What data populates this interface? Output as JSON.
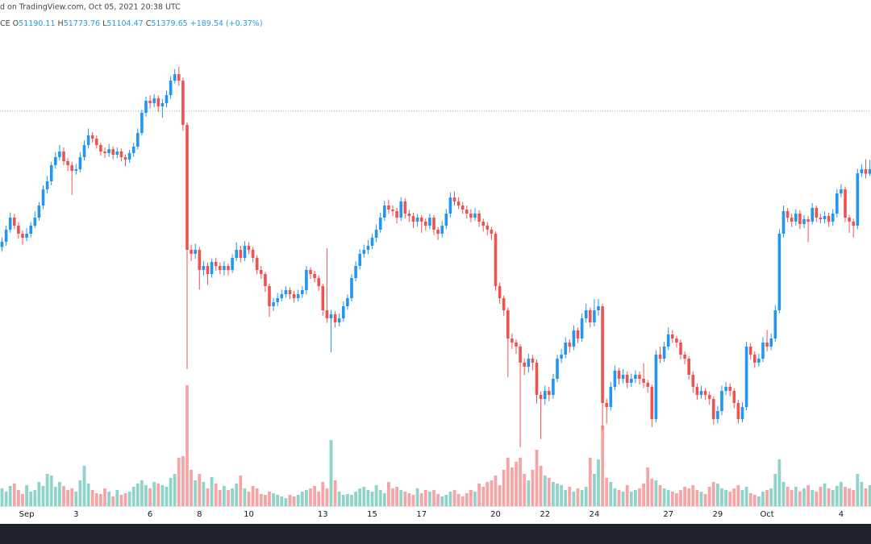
{
  "chart_data": {
    "type": "candlestick",
    "title": "d on TradingView.com, Oct 05, 2021 20:38 UTC",
    "symbol": "CE",
    "ohlc_legend": [
      {
        "key": "O",
        "value": "51190.11"
      },
      {
        "key": "H",
        "value": "51773.76"
      },
      {
        "key": "L",
        "value": "51104.47"
      },
      {
        "key": "C",
        "value": "51379.65"
      }
    ],
    "change": "+189.54 (+0.37%)",
    "categories": [
      null,
      null,
      null,
      null,
      null,
      null,
      "Sep",
      null,
      null,
      null,
      null,
      null,
      null,
      null,
      null,
      null,
      null,
      null,
      "3",
      null,
      null,
      null,
      null,
      null,
      null,
      null,
      null,
      null,
      null,
      null,
      null,
      null,
      null,
      null,
      null,
      null,
      "6",
      null,
      null,
      null,
      null,
      null,
      null,
      null,
      null,
      null,
      null,
      null,
      "8",
      null,
      null,
      null,
      null,
      null,
      null,
      null,
      null,
      null,
      null,
      null,
      "10",
      null,
      null,
      null,
      null,
      null,
      null,
      null,
      null,
      null,
      null,
      null,
      null,
      null,
      null,
      null,
      null,
      null,
      "13",
      null,
      null,
      null,
      null,
      null,
      null,
      null,
      null,
      null,
      null,
      null,
      "15",
      null,
      null,
      null,
      null,
      null,
      null,
      null,
      null,
      null,
      null,
      null,
      "17",
      null,
      null,
      null,
      null,
      null,
      null,
      null,
      null,
      null,
      null,
      null,
      null,
      null,
      null,
      null,
      null,
      null,
      "20",
      null,
      null,
      null,
      null,
      null,
      null,
      null,
      null,
      null,
      null,
      null,
      "22",
      null,
      null,
      null,
      null,
      null,
      null,
      null,
      null,
      null,
      null,
      null,
      "24",
      null,
      null,
      null,
      null,
      null,
      null,
      null,
      null,
      null,
      null,
      null,
      null,
      null,
      null,
      null,
      null,
      null,
      "27",
      null,
      null,
      null,
      null,
      null,
      null,
      null,
      null,
      null,
      null,
      null,
      "29",
      null,
      null,
      null,
      null,
      null,
      null,
      null,
      null,
      null,
      null,
      null,
      "Oct",
      null,
      null,
      null,
      null,
      null,
      null,
      null,
      null,
      null,
      null,
      null,
      null,
      null,
      null,
      null,
      null,
      null,
      "4",
      null,
      null,
      null,
      null,
      null,
      null,
      null
    ],
    "open": [
      48100,
      48320,
      48830,
      49340,
      49000,
      48660,
      48490,
      48660,
      49000,
      49340,
      49850,
      50530,
      50870,
      51550,
      51890,
      52128,
      51720,
      51550,
      51312,
      51380,
      51890,
      52400,
      52808,
      52672,
      52400,
      52128,
      52060,
      52230,
      51992,
      52128,
      51890,
      51788,
      52060,
      52332,
      52910,
      53760,
      54270,
      54168,
      54372,
      54032,
      54168,
      54508,
      55120,
      55392,
      55120,
      53250,
      47980,
      47810,
      47980,
      47130,
      47300,
      46960,
      47470,
      47300,
      47130,
      47300,
      47130,
      47640,
      47980,
      47640,
      48150,
      47980,
      47640,
      47130,
      46960,
      46450,
      45600,
      45770,
      45940,
      46110,
      46280,
      46110,
      45940,
      46110,
      46280,
      47130,
      46960,
      46790,
      46450,
      45430,
      45090,
      45260,
      44920,
      45090,
      45600,
      45940,
      46790,
      47300,
      47810,
      47980,
      48150,
      48490,
      48830,
      49340,
      49850,
      49680,
      49612,
      49340,
      50020,
      49510,
      49408,
      49170,
      49340,
      49170,
      49000,
      49340,
      48830,
      48660,
      49000,
      49510,
      50190,
      50020,
      49850,
      49680,
      49510,
      49340,
      49510,
      49170,
      49000,
      48830,
      48660,
      46450,
      45940,
      45430,
      44240,
      44070,
      43900,
      43220,
      43050,
      43390,
      43220,
      41860,
      41690,
      42030,
      41860,
      42540,
      43390,
      43560,
      44070,
      43900,
      44580,
      44240,
      45090,
      45430,
      44920,
      45430,
      45600,
      41520,
      41350,
      42200,
      42880,
      42540,
      42710,
      42370,
      42540,
      42710,
      42540,
      42370,
      42200,
      40840,
      43560,
      43390,
      43900,
      44410,
      44240,
      44070,
      43560,
      43390,
      42710,
      42200,
      41860,
      42030,
      41860,
      41690,
      40840,
      41180,
      42030,
      42200,
      42030,
      41520,
      40840,
      41350,
      43900,
      43560,
      43220,
      43390,
      44070,
      43900,
      44240,
      45430,
      48660,
      49612,
      49340,
      49170,
      49510,
      49068,
      49272,
      49170,
      49748,
      49340,
      49272,
      49408,
      49170,
      49510,
      50360,
      50530,
      49340,
      49170,
      49000,
      51210,
      51380,
      51190.11
    ],
    "high": [
      48500,
      49000,
      49560,
      49500,
      49150,
      48800,
      48900,
      49150,
      49600,
      50000,
      50700,
      51100,
      51700,
      52100,
      52400,
      52300,
      51850,
      51700,
      51600,
      52100,
      52600,
      53100,
      52950,
      52800,
      52500,
      52300,
      52450,
      52350,
      52300,
      52250,
      52000,
      52200,
      52500,
      53100,
      53900,
      54450,
      54500,
      54550,
      54500,
      54350,
      54700,
      55300,
      55600,
      55700,
      55250,
      53350,
      48200,
      48250,
      48100,
      47500,
      47450,
      47600,
      47650,
      47450,
      47500,
      47400,
      47800,
      48300,
      48150,
      48350,
      48300,
      48100,
      47750,
      47300,
      47050,
      46550,
      45950,
      46150,
      46300,
      46450,
      46400,
      46250,
      46300,
      46450,
      47300,
      47250,
      47100,
      46900,
      46550,
      48050,
      45450,
      45400,
      45300,
      45800,
      46100,
      46950,
      47500,
      48000,
      48200,
      48400,
      48650,
      49050,
      49550,
      50050,
      50100,
      49850,
      49750,
      50200,
      50150,
      49650,
      49550,
      49500,
      49450,
      49300,
      49500,
      49450,
      48950,
      49200,
      49700,
      50400,
      50450,
      50200,
      50000,
      49850,
      49700,
      49750,
      49650,
      49300,
      49150,
      48950,
      48750,
      46600,
      46050,
      45550,
      44450,
      44200,
      44000,
      43400,
      43600,
      43550,
      43350,
      42000,
      42250,
      42200,
      42750,
      43550,
      43800,
      44300,
      44200,
      44800,
      44700,
      45300,
      45700,
      45550,
      45900,
      45900,
      45700,
      41700,
      42400,
      43100,
      43000,
      42950,
      42850,
      42750,
      42900,
      42850,
      43200,
      42500,
      42300,
      43750,
      43900,
      44100,
      44700,
      44600,
      44350,
      44200,
      43700,
      43500,
      42850,
      42350,
      42250,
      42150,
      42000,
      41800,
      41400,
      42250,
      42400,
      42350,
      42150,
      41650,
      41550,
      44100,
      44050,
      43700,
      43600,
      44300,
      44600,
      44450,
      45650,
      48850,
      49850,
      49750,
      49500,
      49700,
      49650,
      49450,
      49400,
      49950,
      49850,
      49500,
      49600,
      49550,
      49700,
      50550,
      50750,
      50650,
      49450,
      49300,
      51400,
      51600,
      51800,
      51773.76
    ],
    "low": [
      47900,
      48150,
      48700,
      48850,
      48450,
      48200,
      48350,
      48500,
      48900,
      49200,
      49700,
      50350,
      50700,
      51400,
      51750,
      51550,
      51300,
      50300,
      51150,
      51250,
      51750,
      52250,
      52500,
      52250,
      51950,
      51850,
      51900,
      51800,
      51850,
      51700,
      51500,
      51650,
      51900,
      52200,
      52800,
      53600,
      53950,
      54000,
      53800,
      53550,
      54000,
      54350,
      55000,
      54900,
      53000,
      42950,
      47500,
      47600,
      46300,
      46900,
      46500,
      46800,
      47100,
      46950,
      46900,
      46900,
      47000,
      47500,
      47450,
      47500,
      47800,
      47450,
      46950,
      46750,
      46200,
      45150,
      45400,
      45600,
      45800,
      45950,
      45900,
      45750,
      45800,
      45950,
      46100,
      46750,
      46600,
      46250,
      45200,
      44900,
      43660,
      44700,
      44750,
      44950,
      45450,
      45800,
      46650,
      47150,
      47650,
      47800,
      48000,
      48300,
      48700,
      49200,
      49500,
      49400,
      49100,
      49200,
      49300,
      49150,
      48900,
      48950,
      48700,
      48800,
      48850,
      48600,
      48400,
      48500,
      48850,
      49350,
      49850,
      49700,
      49500,
      49300,
      49150,
      49200,
      48950,
      48750,
      48600,
      48400,
      46250,
      45700,
      45200,
      42600,
      43800,
      43600,
      39650,
      42700,
      42800,
      42900,
      41500,
      39990,
      41450,
      41600,
      41700,
      42400,
      43200,
      43400,
      43650,
      43750,
      44050,
      44100,
      44900,
      44700,
      44750,
      45200,
      40400,
      40650,
      41200,
      42050,
      42300,
      42350,
      42150,
      42200,
      42350,
      42300,
      42150,
      41950,
      40500,
      40700,
      43200,
      43250,
      43750,
      44050,
      43850,
      43350,
      43150,
      42500,
      41950,
      41650,
      41700,
      41650,
      41450,
      40600,
      40650,
      41000,
      41850,
      41800,
      41300,
      40650,
      40700,
      41200,
      43350,
      43000,
      43050,
      43250,
      43700,
      43750,
      44100,
      45300,
      48500,
      49150,
      48950,
      49000,
      48850,
      48900,
      48300,
      49050,
      49150,
      49100,
      49100,
      48950,
      49000,
      49350,
      50200,
      49150,
      48700,
      48500,
      48850,
      51050,
      51000,
      51104.47
    ],
    "close": [
      48320,
      48830,
      49340,
      49000,
      48660,
      48490,
      48660,
      49000,
      49340,
      49850,
      50530,
      50870,
      51550,
      51890,
      52128,
      51720,
      51550,
      51312,
      51380,
      51890,
      52400,
      52808,
      52672,
      52400,
      52128,
      52060,
      52230,
      51992,
      52128,
      51890,
      51788,
      52060,
      52332,
      52910,
      53760,
      54270,
      54168,
      54372,
      54032,
      54168,
      54508,
      55120,
      55392,
      55120,
      53250,
      47980,
      47810,
      47980,
      47130,
      47300,
      46960,
      47470,
      47300,
      47130,
      47300,
      47130,
      47640,
      47980,
      47640,
      48150,
      47980,
      47640,
      47130,
      46960,
      46450,
      45600,
      45770,
      45940,
      46110,
      46280,
      46110,
      45940,
      46110,
      46280,
      47130,
      46960,
      46790,
      46450,
      45430,
      45090,
      45260,
      44920,
      45090,
      45600,
      45940,
      46790,
      47300,
      47810,
      47980,
      48150,
      48490,
      48830,
      49340,
      49850,
      49680,
      49612,
      49340,
      50020,
      49510,
      49408,
      49170,
      49340,
      49170,
      49000,
      49340,
      48830,
      48660,
      49000,
      49510,
      50190,
      50020,
      49850,
      49680,
      49510,
      49340,
      49510,
      49170,
      49000,
      48830,
      48660,
      46450,
      45940,
      45430,
      44240,
      44070,
      43900,
      43220,
      43050,
      43390,
      43220,
      41860,
      41690,
      42030,
      41860,
      42540,
      43390,
      43560,
      44070,
      43900,
      44580,
      44240,
      45090,
      45430,
      44920,
      45430,
      45600,
      41520,
      41350,
      42200,
      42880,
      42540,
      42710,
      42370,
      42540,
      42710,
      42540,
      42370,
      42200,
      40840,
      43560,
      43390,
      43900,
      44410,
      44240,
      44070,
      43560,
      43390,
      42710,
      42200,
      41860,
      42030,
      41860,
      41690,
      40840,
      41180,
      42030,
      42200,
      42030,
      41520,
      40840,
      41350,
      43900,
      43560,
      43220,
      43390,
      44070,
      43900,
      44240,
      45430,
      48660,
      49612,
      49340,
      49170,
      49510,
      49068,
      49272,
      49170,
      49748,
      49340,
      49272,
      49408,
      49170,
      49510,
      50360,
      50530,
      49340,
      49170,
      49000,
      51210,
      51380,
      51190.11,
      51379.65
    ],
    "volume": [
      2200,
      1800,
      2500,
      2800,
      2000,
      1500,
      2600,
      1800,
      2000,
      3000,
      2500,
      4000,
      3800,
      2400,
      3000,
      2500,
      2000,
      2200,
      1800,
      3200,
      5000,
      2800,
      2000,
      1600,
      1500,
      2200,
      1800,
      1200,
      2000,
      1400,
      1600,
      1800,
      2400,
      2800,
      3200,
      2600,
      2200,
      3000,
      2800,
      2600,
      2400,
      3500,
      4000,
      6000,
      6200,
      15000,
      4500,
      3200,
      4000,
      3000,
      2200,
      3600,
      2800,
      2000,
      2500,
      2000,
      2200,
      2800,
      3800,
      2200,
      1800,
      2500,
      2200,
      1500,
      1400,
      1800,
      1600,
      1400,
      1200,
      1000,
      1400,
      1200,
      1400,
      1800,
      2000,
      2200,
      2500,
      1800,
      3000,
      2200,
      8200,
      3200,
      1800,
      1400,
      1500,
      1400,
      1800,
      2200,
      2400,
      2000,
      1800,
      2600,
      2000,
      1600,
      3000,
      2200,
      2400,
      2000,
      1800,
      1600,
      1400,
      2200,
      1600,
      2000,
      1800,
      2000,
      1500,
      1200,
      1400,
      1800,
      2000,
      1500,
      1200,
      1600,
      2000,
      1800,
      2800,
      2400,
      3000,
      3200,
      3800,
      2600,
      4500,
      6000,
      4800,
      5500,
      6000,
      4000,
      3200,
      4500,
      7000,
      5000,
      3800,
      3500,
      3000,
      2800,
      2600,
      2000,
      2400,
      1800,
      2200,
      2000,
      2400,
      6000,
      4000,
      5800,
      10000,
      3500,
      3000,
      2200,
      2000,
      1800,
      2600,
      1800,
      2000,
      2200,
      2800,
      4800,
      3400,
      3200,
      2600,
      2200,
      2000,
      1800,
      1600,
      2000,
      2400,
      2200,
      2600,
      2000,
      1800,
      1500,
      2400,
      3000,
      2800,
      2200,
      2000,
      1800,
      2200,
      2600,
      2000,
      2400,
      1600,
      1400,
      1200,
      1800,
      2000,
      2200,
      4000,
      5800,
      3000,
      2400,
      2000,
      2400,
      1800,
      2200,
      2600,
      2000,
      1800,
      2400,
      2800,
      2200,
      2000,
      2500,
      3000,
      2400,
      2200,
      2000,
      4000,
      3000,
      2200,
      2600
    ],
    "ylim": [
      37168,
      57840
    ],
    "y2lim": [
      0,
      60800
    ],
    "price_line": 53828,
    "up_color": "#2196f3",
    "down_color": "#ef5350",
    "volume_up_color": "#8fd3c9",
    "volume_down_color": "#f5a5a5",
    "price_line_color": "#6bb8f0"
  }
}
